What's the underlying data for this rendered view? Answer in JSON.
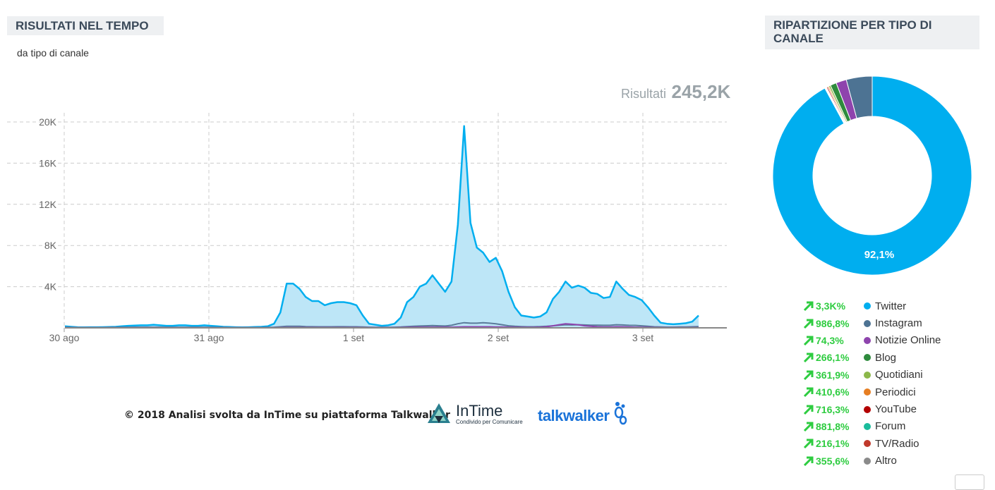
{
  "left_panel": {
    "title": "RISULTATI NEL TEMPO",
    "subtitle": "da tipo di canale",
    "total_label": "Risultati",
    "total_value": "245,2K"
  },
  "right_panel": {
    "title": "RIPARTIZIONE PER TIPO DI CANALE"
  },
  "footer": {
    "text": "© 2018  Analisi svolta da InTime su piattaforma Talkwalker",
    "intime_name": "InTime",
    "intime_tagline": "Condivido per Comunicare",
    "talkwalker_name": "talkwalker"
  },
  "chart_data": [
    {
      "type": "area",
      "x_ticks": [
        "30 ago",
        "31 ago",
        "1 set",
        "2 set",
        "3 set"
      ],
      "y_ticks": [
        "4K",
        "8K",
        "12K",
        "16K",
        "20K"
      ],
      "ylim": [
        0,
        20000
      ],
      "grid": true,
      "series": [
        {
          "name": "Twitter",
          "color": "#00aeef",
          "values": [
            150,
            100,
            60,
            50,
            60,
            60,
            70,
            80,
            100,
            150,
            200,
            220,
            250,
            250,
            300,
            250,
            200,
            200,
            250,
            250,
            200,
            200,
            250,
            200,
            150,
            100,
            80,
            60,
            50,
            60,
            80,
            100,
            150,
            400,
            1500,
            4300,
            4300,
            3800,
            3000,
            2600,
            2600,
            2200,
            2400,
            2500,
            2500,
            2400,
            2200,
            1200,
            400,
            300,
            200,
            250,
            400,
            1000,
            2500,
            3000,
            4000,
            4300,
            5100,
            4300,
            3500,
            4500,
            10000,
            19600,
            10200,
            7800,
            7300,
            6400,
            6800,
            5500,
            3500,
            2000,
            1200,
            1100,
            1000,
            1100,
            1500,
            2800,
            3500,
            4500,
            3900,
            4100,
            3900,
            3400,
            3300,
            2900,
            3000,
            4500,
            3800,
            3200,
            3000,
            2700,
            2000,
            1200,
            500,
            400,
            350,
            400,
            450,
            600,
            1200
          ]
        },
        {
          "name": "Instagram",
          "color": "#5a7a9a",
          "values": [
            50,
            40,
            30,
            30,
            30,
            30,
            30,
            40,
            40,
            50,
            50,
            60,
            60,
            60,
            60,
            60,
            50,
            50,
            50,
            50,
            50,
            50,
            50,
            50,
            40,
            40,
            30,
            30,
            30,
            30,
            30,
            30,
            40,
            60,
            100,
            150,
            150,
            150,
            120,
            110,
            100,
            100,
            100,
            110,
            110,
            100,
            100,
            80,
            60,
            50,
            50,
            50,
            60,
            80,
            120,
            150,
            180,
            200,
            220,
            200,
            180,
            250,
            400,
            500,
            450,
            450,
            500,
            450,
            400,
            300,
            200,
            150,
            120,
            100,
            100,
            120,
            150,
            200,
            250,
            300,
            280,
            300,
            280,
            260,
            260,
            250,
            250,
            300,
            280,
            250,
            240,
            200,
            150,
            100,
            80,
            70,
            70,
            80,
            80,
            100,
            120
          ]
        },
        {
          "name": "Notizie Online",
          "color": "#8e44ad",
          "values": [
            10,
            10,
            10,
            10,
            10,
            10,
            10,
            10,
            10,
            10,
            10,
            10,
            10,
            10,
            10,
            10,
            10,
            10,
            10,
            10,
            10,
            10,
            10,
            10,
            10,
            10,
            10,
            10,
            10,
            10,
            10,
            10,
            10,
            10,
            20,
            30,
            30,
            30,
            30,
            30,
            30,
            30,
            30,
            30,
            30,
            30,
            30,
            20,
            20,
            20,
            20,
            20,
            20,
            30,
            40,
            50,
            60,
            60,
            60,
            60,
            60,
            60,
            80,
            100,
            100,
            100,
            100,
            100,
            90,
            80,
            60,
            50,
            40,
            40,
            40,
            60,
            100,
            200,
            300,
            400,
            350,
            300,
            200,
            150,
            100,
            80,
            80,
            100,
            100,
            80,
            60,
            50,
            40,
            30,
            20,
            20,
            20,
            20,
            20,
            20,
            20
          ]
        }
      ]
    },
    {
      "type": "pie",
      "labels": [
        "Twitter",
        "Instagram",
        "Notizie Online",
        "Blog",
        "Quotidiani",
        "Periodici",
        "YouTube",
        "Forum",
        "TV/Radio",
        "Altro"
      ],
      "values": [
        92.1,
        4.2,
        1.7,
        1.0,
        0.3,
        0.2,
        0.2,
        0.1,
        0.1,
        0.1
      ],
      "colors": [
        "#00aeef",
        "#4d7393",
        "#8e44ad",
        "#2e8b3d",
        "#8cb84a",
        "#e67e22",
        "#b30000",
        "#1abc9c",
        "#c0392b",
        "#8a8a8a"
      ],
      "slice_label": "92,1%",
      "changes": [
        "3,3K%",
        "986,8%",
        "74,3%",
        "266,1%",
        "361,9%",
        "410,6%",
        "716,3%",
        "881,8%",
        "216,1%",
        "355,6%"
      ]
    }
  ]
}
